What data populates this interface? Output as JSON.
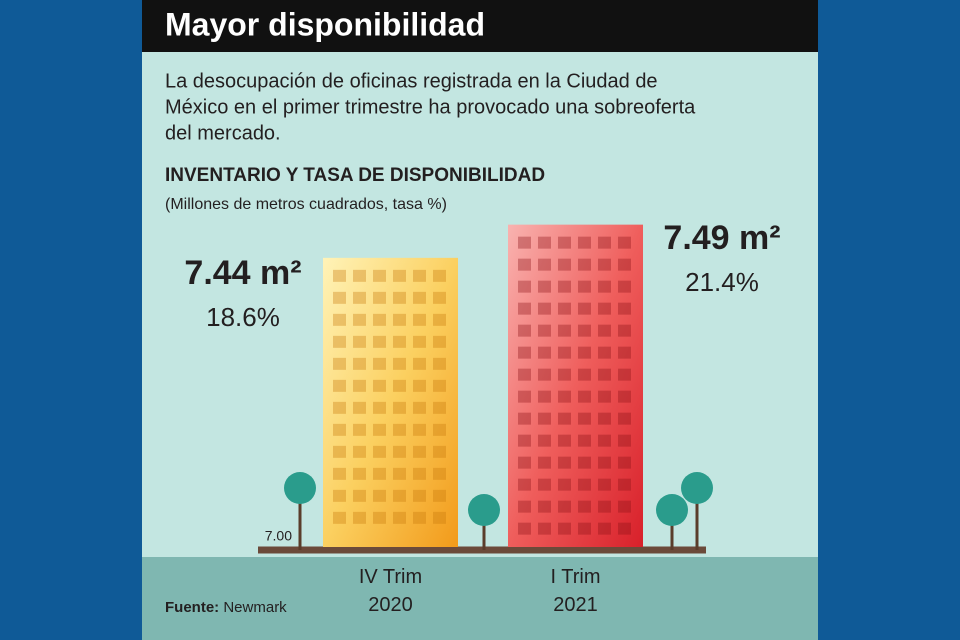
{
  "chart_data": {
    "type": "bar",
    "title": "Mayor disponibilidad",
    "description": [
      "La desocupación de oficinas registrada en la Ciudad de",
      "México en el primer trimestre ha provocado una sobreoferta",
      "del mercado."
    ],
    "subtitle": "INVENTARIO Y TASA DE DISPONIBILIDAD",
    "unit_label": "(Millones de metros cuadrados, tasa %)",
    "categories": [
      "IV Trim 2020",
      "I Trim 2021"
    ],
    "series": [
      {
        "name": "Inventario",
        "colors": [
          "#f7b731",
          "#e8333a"
        ],
        "values": [
          7.44,
          7.49
        ],
        "value_labels": [
          "7.44 m²",
          "7.49 m²"
        ]
      },
      {
        "name": "Tasa de disponibilidad",
        "values": [
          18.6,
          21.4
        ],
        "value_labels": [
          "18.6%",
          "21.4%"
        ]
      }
    ],
    "ylim": [
      7.0,
      7.5
    ],
    "yticks": [
      {
        "value": 7.0,
        "label": "7.00"
      }
    ],
    "source_label": "Fuente:",
    "source": "Newmark"
  }
}
